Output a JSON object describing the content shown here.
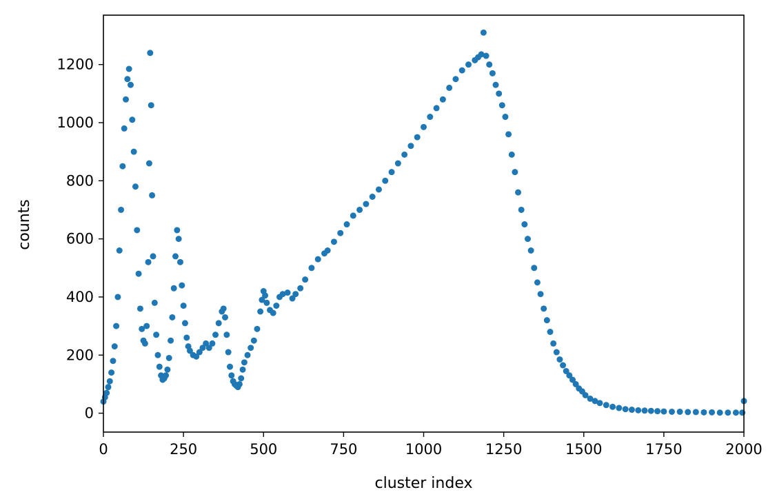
{
  "chart_data": {
    "type": "scatter",
    "xlabel": "cluster index",
    "ylabel": "counts",
    "xlim": [
      0,
      2000
    ],
    "ylim": [
      -65,
      1370
    ],
    "x_ticks": [
      0,
      250,
      500,
      750,
      1000,
      1250,
      1500,
      1750,
      2000
    ],
    "y_ticks": [
      0,
      200,
      400,
      600,
      800,
      1000,
      1200
    ],
    "grid": false,
    "legend": "none",
    "marker_color": "#1f77b4",
    "series": [
      {
        "points": [
          [
            0,
            40
          ],
          [
            5,
            55
          ],
          [
            10,
            70
          ],
          [
            15,
            90
          ],
          [
            20,
            110
          ],
          [
            25,
            140
          ],
          [
            30,
            180
          ],
          [
            35,
            230
          ],
          [
            40,
            300
          ],
          [
            45,
            400
          ],
          [
            50,
            560
          ],
          [
            55,
            700
          ],
          [
            60,
            850
          ],
          [
            65,
            980
          ],
          [
            70,
            1080
          ],
          [
            75,
            1150
          ],
          [
            80,
            1185
          ],
          [
            85,
            1130
          ],
          [
            90,
            1010
          ],
          [
            95,
            900
          ],
          [
            100,
            780
          ],
          [
            105,
            630
          ],
          [
            110,
            480
          ],
          [
            115,
            360
          ],
          [
            120,
            290
          ],
          [
            125,
            250
          ],
          [
            130,
            240
          ],
          [
            135,
            300
          ],
          [
            140,
            520
          ],
          [
            143,
            860
          ],
          [
            146,
            1240
          ],
          [
            149,
            1060
          ],
          [
            152,
            750
          ],
          [
            155,
            540
          ],
          [
            160,
            380
          ],
          [
            165,
            270
          ],
          [
            170,
            200
          ],
          [
            175,
            160
          ],
          [
            180,
            130
          ],
          [
            185,
            115
          ],
          [
            190,
            120
          ],
          [
            195,
            130
          ],
          [
            200,
            150
          ],
          [
            205,
            190
          ],
          [
            210,
            250
          ],
          [
            215,
            330
          ],
          [
            220,
            430
          ],
          [
            225,
            540
          ],
          [
            230,
            630
          ],
          [
            235,
            600
          ],
          [
            240,
            520
          ],
          [
            245,
            440
          ],
          [
            250,
            370
          ],
          [
            255,
            310
          ],
          [
            260,
            260
          ],
          [
            265,
            230
          ],
          [
            270,
            215
          ],
          [
            280,
            200
          ],
          [
            290,
            195
          ],
          [
            300,
            210
          ],
          [
            310,
            225
          ],
          [
            320,
            240
          ],
          [
            330,
            225
          ],
          [
            340,
            240
          ],
          [
            350,
            270
          ],
          [
            360,
            310
          ],
          [
            370,
            350
          ],
          [
            375,
            360
          ],
          [
            380,
            330
          ],
          [
            385,
            270
          ],
          [
            390,
            210
          ],
          [
            395,
            160
          ],
          [
            400,
            130
          ],
          [
            405,
            110
          ],
          [
            410,
            100
          ],
          [
            415,
            95
          ],
          [
            420,
            90
          ],
          [
            425,
            100
          ],
          [
            430,
            120
          ],
          [
            435,
            150
          ],
          [
            440,
            175
          ],
          [
            450,
            200
          ],
          [
            460,
            225
          ],
          [
            470,
            250
          ],
          [
            480,
            290
          ],
          [
            490,
            350
          ],
          [
            495,
            390
          ],
          [
            500,
            420
          ],
          [
            505,
            405
          ],
          [
            510,
            380
          ],
          [
            520,
            355
          ],
          [
            530,
            345
          ],
          [
            540,
            370
          ],
          [
            550,
            400
          ],
          [
            560,
            410
          ],
          [
            575,
            415
          ],
          [
            590,
            395
          ],
          [
            600,
            410
          ],
          [
            615,
            430
          ],
          [
            630,
            460
          ],
          [
            650,
            500
          ],
          [
            670,
            530
          ],
          [
            690,
            550
          ],
          [
            700,
            560
          ],
          [
            720,
            590
          ],
          [
            740,
            620
          ],
          [
            760,
            650
          ],
          [
            780,
            680
          ],
          [
            800,
            700
          ],
          [
            820,
            720
          ],
          [
            840,
            745
          ],
          [
            860,
            770
          ],
          [
            880,
            800
          ],
          [
            900,
            830
          ],
          [
            920,
            860
          ],
          [
            940,
            890
          ],
          [
            960,
            920
          ],
          [
            980,
            950
          ],
          [
            1000,
            985
          ],
          [
            1020,
            1020
          ],
          [
            1040,
            1050
          ],
          [
            1060,
            1080
          ],
          [
            1080,
            1120
          ],
          [
            1100,
            1150
          ],
          [
            1120,
            1180
          ],
          [
            1140,
            1200
          ],
          [
            1160,
            1215
          ],
          [
            1170,
            1225
          ],
          [
            1180,
            1235
          ],
          [
            1187,
            1310
          ],
          [
            1195,
            1230
          ],
          [
            1205,
            1200
          ],
          [
            1215,
            1170
          ],
          [
            1225,
            1130
          ],
          [
            1235,
            1100
          ],
          [
            1245,
            1060
          ],
          [
            1255,
            1020
          ],
          [
            1265,
            960
          ],
          [
            1275,
            890
          ],
          [
            1285,
            830
          ],
          [
            1295,
            760
          ],
          [
            1305,
            700
          ],
          [
            1315,
            650
          ],
          [
            1325,
            600
          ],
          [
            1335,
            560
          ],
          [
            1345,
            500
          ],
          [
            1355,
            450
          ],
          [
            1365,
            410
          ],
          [
            1375,
            360
          ],
          [
            1385,
            320
          ],
          [
            1395,
            280
          ],
          [
            1405,
            240
          ],
          [
            1415,
            210
          ],
          [
            1425,
            185
          ],
          [
            1435,
            165
          ],
          [
            1445,
            145
          ],
          [
            1455,
            130
          ],
          [
            1465,
            115
          ],
          [
            1475,
            100
          ],
          [
            1485,
            85
          ],
          [
            1495,
            75
          ],
          [
            1505,
            62
          ],
          [
            1520,
            50
          ],
          [
            1535,
            42
          ],
          [
            1550,
            35
          ],
          [
            1570,
            28
          ],
          [
            1590,
            22
          ],
          [
            1610,
            18
          ],
          [
            1630,
            14
          ],
          [
            1650,
            12
          ],
          [
            1670,
            10
          ],
          [
            1690,
            9
          ],
          [
            1710,
            8
          ],
          [
            1730,
            7
          ],
          [
            1750,
            6
          ],
          [
            1775,
            5
          ],
          [
            1800,
            5
          ],
          [
            1825,
            4
          ],
          [
            1850,
            4
          ],
          [
            1875,
            3
          ],
          [
            1900,
            3
          ],
          [
            1925,
            2
          ],
          [
            1950,
            2
          ],
          [
            1975,
            2
          ],
          [
            1995,
            2
          ],
          [
            2000,
            42
          ]
        ]
      }
    ]
  }
}
